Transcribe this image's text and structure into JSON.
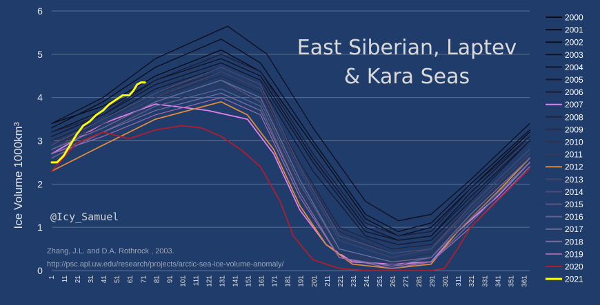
{
  "chart_data": {
    "type": "line",
    "title_lines": [
      "East Siberian, Laptev",
      "& Kara Seas"
    ],
    "ylabel": "Ice Volume  1000km³",
    "watermark": "@Icy_Samuel",
    "source_lines": [
      "Zhang, J.L. and D.A. Rothrock , 2003.",
      "http://psc.apl.uw.edu/research/projects/arctic-sea-ice-volume-anomaly/"
    ],
    "xlim": [
      1,
      365
    ],
    "ylim": [
      0,
      6
    ],
    "y_ticks": [
      0,
      1,
      2,
      3,
      4,
      5,
      6
    ],
    "x_ticks": [
      1,
      11,
      21,
      31,
      41,
      51,
      61,
      71,
      81,
      91,
      101,
      111,
      121,
      131,
      141,
      151,
      161,
      171,
      181,
      191,
      201,
      211,
      221,
      231,
      241,
      251,
      261,
      271,
      281,
      291,
      301,
      311,
      321,
      331,
      341,
      351,
      361
    ],
    "grid": "horizontal",
    "legend_position": "right",
    "series": [
      {
        "name": "2000",
        "color": "#0a0a14",
        "x": [
          1,
          40,
          80,
          130,
          160,
          200,
          240,
          265,
          290,
          320,
          365
        ],
        "values": [
          3.4,
          3.8,
          4.5,
          5.1,
          4.6,
          2.9,
          1.2,
          0.8,
          1.0,
          1.9,
          3.2
        ]
      },
      {
        "name": "2001",
        "color": "#0c0c18",
        "x": [
          1,
          40,
          80,
          130,
          160,
          200,
          240,
          265,
          290,
          320,
          365
        ],
        "values": [
          3.3,
          3.9,
          4.7,
          5.35,
          4.8,
          3.0,
          1.3,
          0.9,
          1.1,
          2.0,
          3.25
        ]
      },
      {
        "name": "2002",
        "color": "#0e0e1c",
        "x": [
          1,
          40,
          80,
          135,
          165,
          200,
          240,
          265,
          290,
          320,
          365
        ],
        "values": [
          3.4,
          4.0,
          4.9,
          5.65,
          5.0,
          3.3,
          1.6,
          1.15,
          1.3,
          2.1,
          3.4
        ]
      },
      {
        "name": "2003",
        "color": "#111122",
        "x": [
          1,
          40,
          80,
          130,
          160,
          200,
          240,
          265,
          290,
          320,
          365
        ],
        "values": [
          3.2,
          3.7,
          4.4,
          4.9,
          4.5,
          2.6,
          1.0,
          0.7,
          0.8,
          1.8,
          3.1
        ]
      },
      {
        "name": "2004",
        "color": "#141428",
        "x": [
          1,
          40,
          80,
          130,
          160,
          200,
          240,
          265,
          290,
          320,
          365
        ],
        "values": [
          3.1,
          3.6,
          4.3,
          4.8,
          4.4,
          2.5,
          0.9,
          0.7,
          0.8,
          1.7,
          3.0
        ]
      },
      {
        "name": "2005",
        "color": "#18182e",
        "x": [
          1,
          40,
          80,
          130,
          160,
          200,
          240,
          265,
          290,
          320,
          365
        ],
        "values": [
          3.0,
          3.5,
          4.2,
          4.7,
          4.3,
          2.3,
          0.8,
          0.6,
          0.7,
          1.6,
          3.0
        ]
      },
      {
        "name": "2006",
        "color": "#1c1c36",
        "x": [
          1,
          40,
          80,
          130,
          160,
          200,
          240,
          265,
          290,
          320,
          365
        ],
        "values": [
          3.2,
          3.6,
          4.4,
          5.0,
          4.6,
          2.7,
          1.1,
          0.8,
          0.9,
          1.9,
          3.1
        ]
      },
      {
        "name": "2007",
        "color": "#e27ff0",
        "x": [
          1,
          40,
          80,
          120,
          150,
          170,
          190,
          210,
          230,
          260,
          290,
          310,
          340,
          365
        ],
        "values": [
          2.7,
          3.4,
          3.85,
          3.7,
          3.5,
          2.7,
          1.4,
          0.6,
          0.2,
          0.15,
          0.2,
          0.9,
          1.7,
          2.5
        ]
      },
      {
        "name": "2008",
        "color": "#242440",
        "x": [
          1,
          40,
          80,
          130,
          160,
          190,
          220,
          260,
          290,
          320,
          365
        ],
        "values": [
          3.0,
          3.5,
          4.1,
          4.6,
          4.2,
          2.5,
          1.0,
          0.5,
          0.6,
          1.5,
          2.8
        ]
      },
      {
        "name": "2009",
        "color": "#2a2a48",
        "x": [
          1,
          40,
          80,
          130,
          160,
          190,
          220,
          260,
          290,
          320,
          365
        ],
        "values": [
          2.9,
          3.4,
          4.0,
          4.5,
          4.1,
          2.4,
          0.9,
          0.4,
          0.5,
          1.4,
          2.7
        ]
      },
      {
        "name": "2010",
        "color": "#303050",
        "x": [
          1,
          40,
          80,
          130,
          160,
          190,
          220,
          260,
          290,
          320,
          365
        ],
        "values": [
          2.9,
          3.3,
          3.9,
          4.4,
          4.0,
          2.1,
          0.5,
          0.2,
          0.4,
          1.3,
          2.7
        ]
      },
      {
        "name": "2011",
        "color": "#38385a",
        "x": [
          1,
          40,
          80,
          130,
          160,
          190,
          220,
          260,
          290,
          320,
          365
        ],
        "values": [
          2.8,
          3.3,
          3.8,
          4.3,
          3.9,
          1.9,
          0.4,
          0.15,
          0.3,
          1.2,
          2.6
        ]
      },
      {
        "name": "2012",
        "color": "#e08a3c",
        "x": [
          1,
          40,
          80,
          130,
          150,
          170,
          190,
          210,
          230,
          260,
          290,
          310,
          340,
          365
        ],
        "values": [
          2.3,
          2.9,
          3.5,
          3.9,
          3.6,
          2.8,
          1.5,
          0.6,
          0.15,
          0.05,
          0.15,
          0.9,
          1.8,
          2.6
        ]
      },
      {
        "name": "2013",
        "color": "#444468",
        "x": [
          1,
          40,
          80,
          130,
          160,
          190,
          220,
          260,
          290,
          320,
          365
        ],
        "values": [
          2.8,
          3.4,
          4.0,
          4.6,
          4.2,
          2.3,
          0.7,
          0.3,
          0.5,
          1.4,
          2.7
        ]
      },
      {
        "name": "2014",
        "color": "#4e4e74",
        "x": [
          1,
          40,
          80,
          130,
          160,
          190,
          220,
          260,
          290,
          320,
          365
        ],
        "values": [
          2.9,
          3.5,
          4.1,
          4.7,
          4.3,
          2.4,
          0.8,
          0.4,
          0.5,
          1.5,
          2.8
        ]
      },
      {
        "name": "2015",
        "color": "#585880",
        "x": [
          1,
          40,
          80,
          130,
          160,
          190,
          220,
          260,
          290,
          320,
          365
        ],
        "values": [
          2.8,
          3.3,
          3.9,
          4.4,
          3.9,
          2.0,
          0.5,
          0.2,
          0.3,
          1.3,
          2.6
        ]
      },
      {
        "name": "2016",
        "color": "#62628a",
        "x": [
          1,
          40,
          80,
          130,
          160,
          190,
          220,
          260,
          290,
          320,
          365
        ],
        "values": [
          2.7,
          3.2,
          3.8,
          4.2,
          3.8,
          1.8,
          0.3,
          0.1,
          0.3,
          1.2,
          2.5
        ]
      },
      {
        "name": "2017",
        "color": "#6c6c94",
        "x": [
          1,
          40,
          80,
          130,
          160,
          190,
          220,
          260,
          290,
          320,
          365
        ],
        "values": [
          2.8,
          3.3,
          3.9,
          4.4,
          4.0,
          2.1,
          0.5,
          0.2,
          0.3,
          1.3,
          2.6
        ]
      },
      {
        "name": "2018",
        "color": "#7a6c9c",
        "x": [
          1,
          40,
          80,
          130,
          160,
          190,
          220,
          260,
          290,
          320,
          365
        ],
        "values": [
          2.6,
          3.2,
          3.7,
          4.1,
          3.7,
          1.8,
          0.3,
          0.1,
          0.2,
          1.1,
          2.5
        ]
      },
      {
        "name": "2019",
        "color": "#9c6aa8",
        "x": [
          1,
          40,
          80,
          130,
          160,
          190,
          220,
          260,
          290,
          320,
          365
        ],
        "values": [
          2.7,
          3.1,
          3.6,
          4.0,
          3.6,
          1.7,
          0.3,
          0.05,
          0.2,
          1.0,
          2.4
        ]
      },
      {
        "name": "2020",
        "color": "#b01e2e",
        "x": [
          1,
          20,
          40,
          60,
          80,
          100,
          115,
          130,
          145,
          160,
          175,
          185,
          200,
          220,
          240,
          260,
          290,
          300,
          310,
          320,
          340,
          365
        ],
        "values": [
          2.3,
          2.95,
          3.2,
          3.05,
          3.25,
          3.35,
          3.3,
          3.1,
          2.8,
          2.4,
          1.6,
          0.8,
          0.25,
          0.05,
          0.0,
          0.0,
          0.0,
          0.05,
          0.5,
          1.0,
          1.6,
          2.35
        ]
      },
      {
        "name": "2021",
        "color": "#ffff00",
        "x": [
          1,
          5,
          10,
          15,
          20,
          25,
          30,
          35,
          40,
          45,
          50,
          55,
          60,
          63,
          66,
          69,
          72
        ],
        "values": [
          2.5,
          2.5,
          2.65,
          2.9,
          3.15,
          3.35,
          3.45,
          3.6,
          3.7,
          3.85,
          3.95,
          4.05,
          4.05,
          4.15,
          4.3,
          4.35,
          4.35
        ]
      }
    ]
  }
}
